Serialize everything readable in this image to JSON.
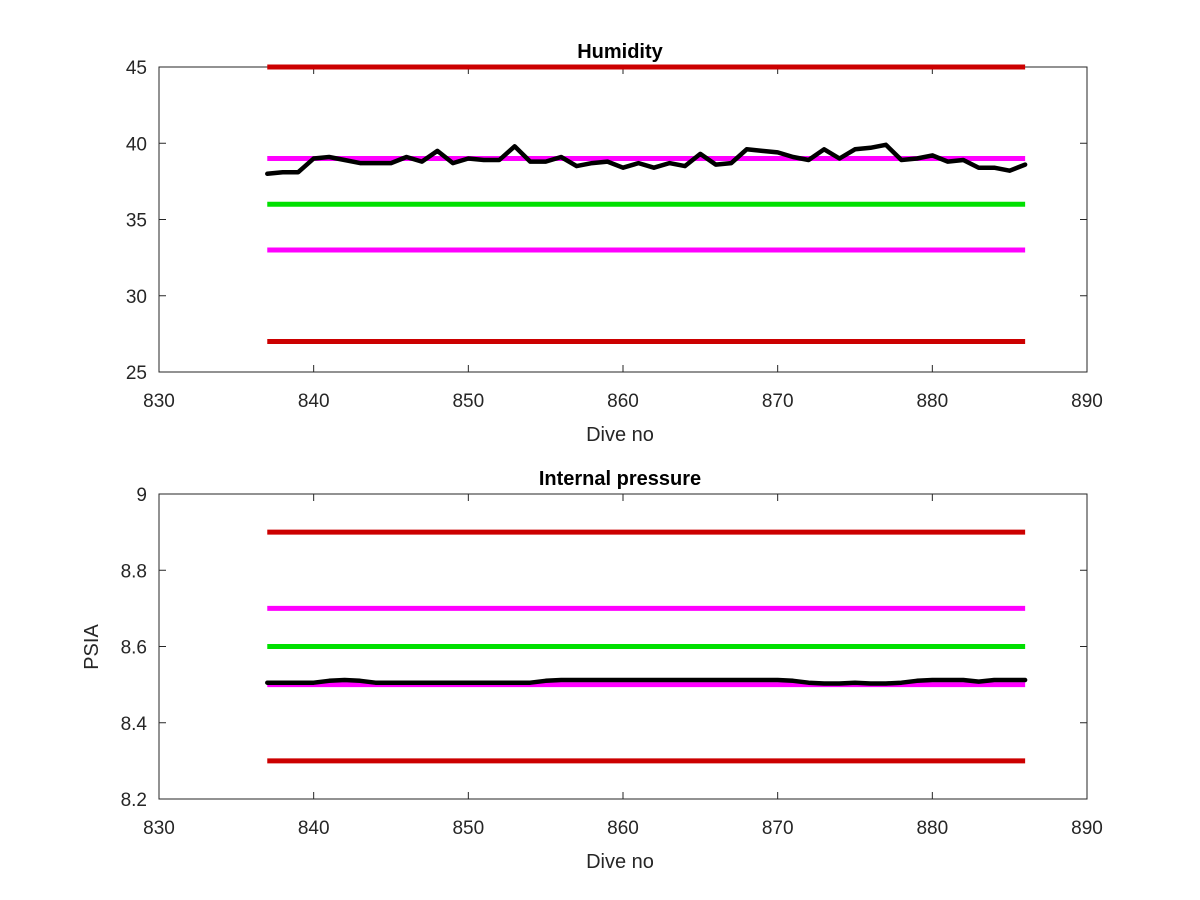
{
  "chart_data": [
    {
      "type": "line",
      "title": "Humidity",
      "xlabel": "Dive no",
      "ylabel": "",
      "xlim": [
        830,
        890
      ],
      "ylim": [
        25,
        45
      ],
      "xticks": [
        830,
        840,
        850,
        860,
        870,
        880,
        890
      ],
      "yticks": [
        25,
        30,
        35,
        40,
        45
      ],
      "xtick_labels": [
        "830",
        "840",
        "850",
        "860",
        "870",
        "880",
        "890"
      ],
      "ytick_labels": [
        "25",
        "30",
        "35",
        "40",
        "45"
      ],
      "grid": false,
      "thresholds": [
        {
          "value": 45,
          "x": [
            837,
            886
          ],
          "color": "#cc0000"
        },
        {
          "value": 39,
          "x": [
            837,
            886
          ],
          "color": "#ff00ff"
        },
        {
          "value": 36,
          "x": [
            837,
            886
          ],
          "color": "#00e000"
        },
        {
          "value": 33,
          "x": [
            837,
            886
          ],
          "color": "#ff00ff"
        },
        {
          "value": 27,
          "x": [
            837,
            886
          ],
          "color": "#cc0000"
        }
      ],
      "series": [
        {
          "color": "#000000",
          "x": [
            837,
            838,
            839,
            840,
            841,
            842,
            843,
            844,
            845,
            846,
            847,
            848,
            849,
            850,
            851,
            852,
            853,
            854,
            855,
            856,
            857,
            858,
            859,
            860,
            861,
            862,
            863,
            864,
            865,
            866,
            867,
            868,
            869,
            870,
            871,
            872,
            873,
            874,
            875,
            876,
            877,
            878,
            879,
            880,
            881,
            882,
            883,
            884,
            885,
            886
          ],
          "values": [
            38.0,
            38.1,
            38.1,
            39.0,
            39.1,
            38.9,
            38.7,
            38.7,
            38.7,
            39.1,
            38.8,
            39.5,
            38.7,
            39.0,
            38.9,
            38.9,
            39.8,
            38.8,
            38.8,
            39.1,
            38.5,
            38.7,
            38.8,
            38.4,
            38.7,
            38.4,
            38.7,
            38.5,
            39.3,
            38.6,
            38.7,
            39.6,
            39.5,
            39.4,
            39.1,
            38.9,
            39.6,
            39.0,
            39.6,
            39.7,
            39.9,
            38.9,
            39.0,
            39.2,
            38.8,
            38.9,
            38.4,
            38.4,
            38.2,
            38.6
          ]
        }
      ]
    },
    {
      "type": "line",
      "title": "Internal pressure",
      "xlabel": "Dive no",
      "ylabel": "PSIA",
      "xlim": [
        830,
        890
      ],
      "ylim": [
        8.2,
        9
      ],
      "xticks": [
        830,
        840,
        850,
        860,
        870,
        880,
        890
      ],
      "yticks": [
        8.2,
        8.4,
        8.6,
        8.8,
        9
      ],
      "xtick_labels": [
        "830",
        "840",
        "850",
        "860",
        "870",
        "880",
        "890"
      ],
      "ytick_labels": [
        "8.2",
        "8.4",
        "8.6",
        "8.8",
        "9"
      ],
      "grid": false,
      "thresholds": [
        {
          "value": 8.9,
          "x": [
            837,
            886
          ],
          "color": "#cc0000"
        },
        {
          "value": 8.7,
          "x": [
            837,
            886
          ],
          "color": "#ff00ff"
        },
        {
          "value": 8.6,
          "x": [
            837,
            886
          ],
          "color": "#00e000"
        },
        {
          "value": 8.5,
          "x": [
            837,
            886
          ],
          "color": "#ff00ff"
        },
        {
          "value": 8.3,
          "x": [
            837,
            886
          ],
          "color": "#cc0000"
        }
      ],
      "series": [
        {
          "color": "#000000",
          "x": [
            837,
            838,
            839,
            840,
            841,
            842,
            843,
            844,
            845,
            846,
            847,
            848,
            849,
            850,
            851,
            852,
            853,
            854,
            855,
            856,
            857,
            858,
            859,
            860,
            861,
            862,
            863,
            864,
            865,
            866,
            867,
            868,
            869,
            870,
            871,
            872,
            873,
            874,
            875,
            876,
            877,
            878,
            879,
            880,
            881,
            882,
            883,
            884,
            885,
            886
          ],
          "values": [
            8.505,
            8.505,
            8.505,
            8.505,
            8.51,
            8.512,
            8.51,
            8.505,
            8.505,
            8.505,
            8.505,
            8.505,
            8.505,
            8.505,
            8.505,
            8.505,
            8.505,
            8.505,
            8.51,
            8.512,
            8.512,
            8.512,
            8.512,
            8.512,
            8.512,
            8.512,
            8.512,
            8.512,
            8.512,
            8.512,
            8.512,
            8.512,
            8.512,
            8.512,
            8.51,
            8.505,
            8.503,
            8.503,
            8.505,
            8.503,
            8.503,
            8.505,
            8.51,
            8.512,
            8.512,
            8.512,
            8.508,
            8.512,
            8.512,
            8.512
          ]
        }
      ]
    }
  ]
}
